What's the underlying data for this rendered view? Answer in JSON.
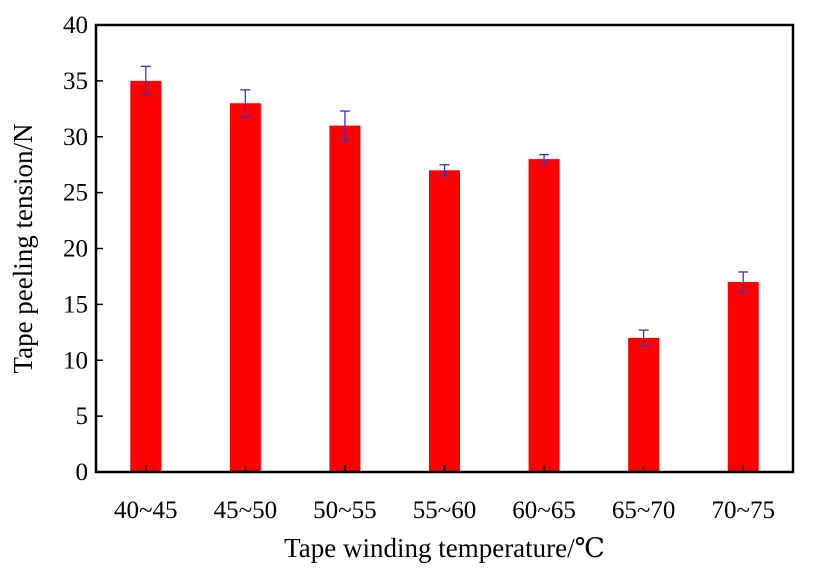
{
  "chart_data": {
    "type": "bar",
    "title": "",
    "xlabel": "Tape winding temperature/℃",
    "ylabel": "Tape peeling tension/N",
    "categories": [
      "40~45",
      "45~50",
      "50~55",
      "55~60",
      "60~65",
      "65~70",
      "70~75"
    ],
    "series": [
      {
        "values": [
          35,
          33,
          31,
          27,
          28,
          12,
          17
        ],
        "error": [
          1.3,
          1.2,
          1.3,
          0.5,
          0.4,
          0.7,
          0.9
        ]
      }
    ],
    "ylim": [
      0,
      40
    ],
    "yticks": [
      "0",
      "5",
      "10",
      "15",
      "20",
      "25",
      "30",
      "35",
      "40"
    ],
    "grid": false,
    "legend": "none",
    "colors": {
      "bar": "#ff0000",
      "error_bar": "#3333cc",
      "axis": "#000000"
    }
  }
}
